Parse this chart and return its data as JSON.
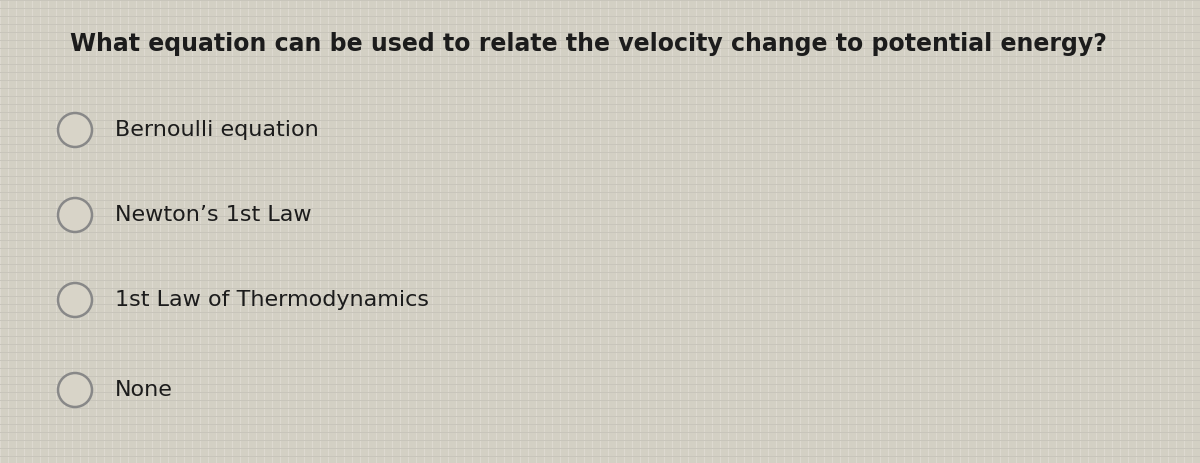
{
  "question": "What equation can be used to relate the velocity change to potential energy?",
  "options": [
    "Bernoulli equation",
    "Newton’s 1st Law",
    "1st Law of Thermodynamics",
    "None"
  ],
  "background_color": "#d4d0c4",
  "grid_color1": "#ccc8bb",
  "grid_color2": "#dedad0",
  "text_color": "#1c1c1c",
  "question_fontsize": 17,
  "option_fontsize": 16,
  "circle_edge_color": "#888888",
  "circle_face_color": "#d8d4c8"
}
